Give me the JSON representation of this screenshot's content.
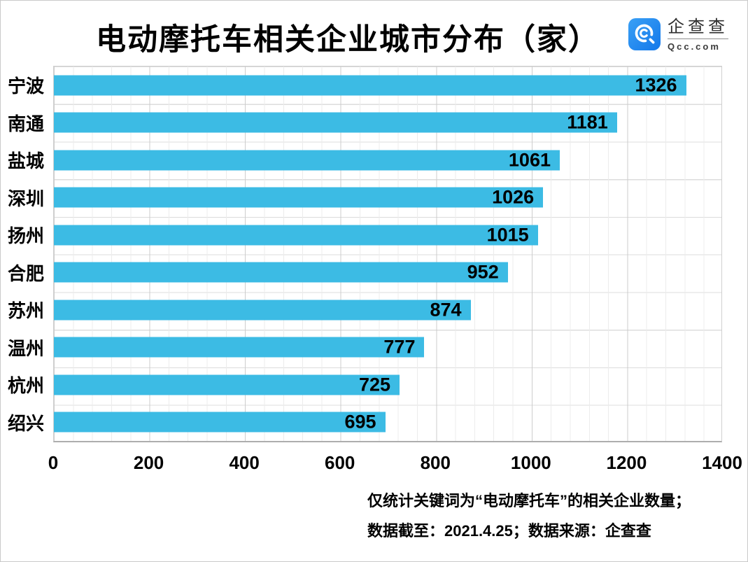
{
  "header": {
    "title": "电动摩托车相关企业城市分布（家）",
    "logo": {
      "name": "企查查",
      "domain": "Qcc.com",
      "brand_blue": "#1f81ee"
    }
  },
  "chart_data": {
    "type": "bar",
    "orientation": "horizontal",
    "title": "电动摩托车相关企业城市分布（家）",
    "categories": [
      "宁波",
      "南通",
      "盐城",
      "深圳",
      "扬州",
      "合肥",
      "苏州",
      "温州",
      "杭州",
      "绍兴"
    ],
    "values": [
      1326,
      1181,
      1061,
      1026,
      1015,
      952,
      874,
      777,
      725,
      695
    ],
    "xlim": [
      0,
      1400
    ],
    "xticks": [
      0,
      200,
      400,
      600,
      800,
      1000,
      1200,
      1400
    ],
    "bar_color": "#3cbbe4",
    "value_label_color": "#000000",
    "grid": "on",
    "legend": "none",
    "value_labels_position": "inside-end"
  },
  "footer": {
    "line1": "仅统计关键词为“电动摩托车”的相关企业数量；",
    "line2": "数据截至：2021.4.25；数据来源：企查查"
  }
}
